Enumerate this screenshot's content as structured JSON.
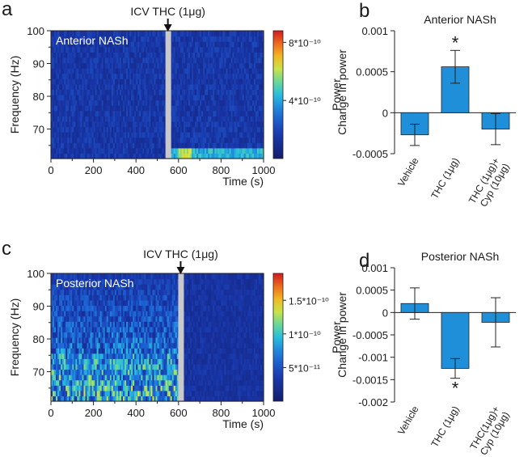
{
  "chart_data": [
    {
      "panel": "a",
      "type": "heatmap",
      "inset_label": "Anterior NASh",
      "annotation": "ICV THC (1μg)",
      "annotation_x": 550,
      "xlabel": "Time (s)",
      "ylabel": "Frequency (Hz)",
      "xlim": [
        0,
        1000
      ],
      "ylim": [
        61,
        100
      ],
      "xticks": [
        "0",
        "200",
        "400",
        "600",
        "800",
        "1000"
      ],
      "yticks": [
        "70",
        "80",
        "90",
        "100"
      ],
      "colorbar": {
        "label": "Power",
        "ticks": [
          "8*10⁻¹⁰",
          "4*10⁻¹⁰"
        ],
        "tick_values": [
          8e-10,
          4e-10
        ],
        "max": 8.8e-10
      },
      "colors": {
        "low": "#1a2a8a",
        "mid": "#1f4fd0",
        "high": "#e02020"
      }
    },
    {
      "panel": "b",
      "type": "bar",
      "title": "Anterior NASh",
      "categories": [
        "Vehicle",
        "THC (1μg)",
        "THC (1μg)+ Cyp (10μg)"
      ],
      "values": [
        -0.00027,
        0.00056,
        -0.0002
      ],
      "errors": [
        0.00013,
        0.0002,
        0.00019
      ],
      "significance": [
        "",
        "*",
        ""
      ],
      "ylabel": "Change in power",
      "ylim": [
        -0.0005,
        0.001
      ],
      "yticks": [
        "0.001",
        "0.0005",
        "0",
        "-0.0005"
      ],
      "ytick_values": [
        0.001,
        0.0005,
        0,
        -0.0005
      ],
      "bar_color": "#1e8fd8"
    },
    {
      "panel": "c",
      "type": "heatmap",
      "inset_label": "Posterior NASh",
      "annotation": "ICV THC (1μg)",
      "annotation_x": 610,
      "xlabel": "Time (s)",
      "ylabel": "Frequency (Hz)",
      "xlim": [
        0,
        1000
      ],
      "ylim": [
        61,
        100
      ],
      "xticks": [
        "0",
        "200",
        "400",
        "600",
        "800",
        "1000"
      ],
      "yticks": [
        "70",
        "80",
        "90",
        "100"
      ],
      "colorbar": {
        "label": "Power",
        "ticks": [
          "1.5*10⁻¹⁰",
          "1*10⁻¹⁰",
          "5*10⁻¹¹"
        ],
        "tick_values": [
          1.5e-10,
          1e-10,
          5e-11
        ],
        "max": 1.9e-10
      },
      "colors": {
        "low": "#1a2a8a",
        "mid": "#1f4fd0",
        "high": "#e02020"
      }
    },
    {
      "panel": "d",
      "type": "bar",
      "title": "Posterior NASh",
      "categories": [
        "Vehicle",
        "THC (1μg)",
        "THC(1μg)+ Cyp (10μg)"
      ],
      "values": [
        0.0002,
        -0.00125,
        -0.00022
      ],
      "errors": [
        0.00035,
        0.00022,
        0.00055
      ],
      "significance": [
        "",
        "*",
        ""
      ],
      "ylabel": "Change in power",
      "ylim": [
        -0.002,
        0.001
      ],
      "yticks": [
        "0.001",
        "0.0005",
        "0",
        "-0.0005",
        "-0.001",
        "-0.0015",
        "-0.002"
      ],
      "ytick_values": [
        0.001,
        0.0005,
        0,
        -0.0005,
        -0.001,
        -0.0015,
        -0.002
      ],
      "bar_color": "#1e8fd8"
    }
  ]
}
